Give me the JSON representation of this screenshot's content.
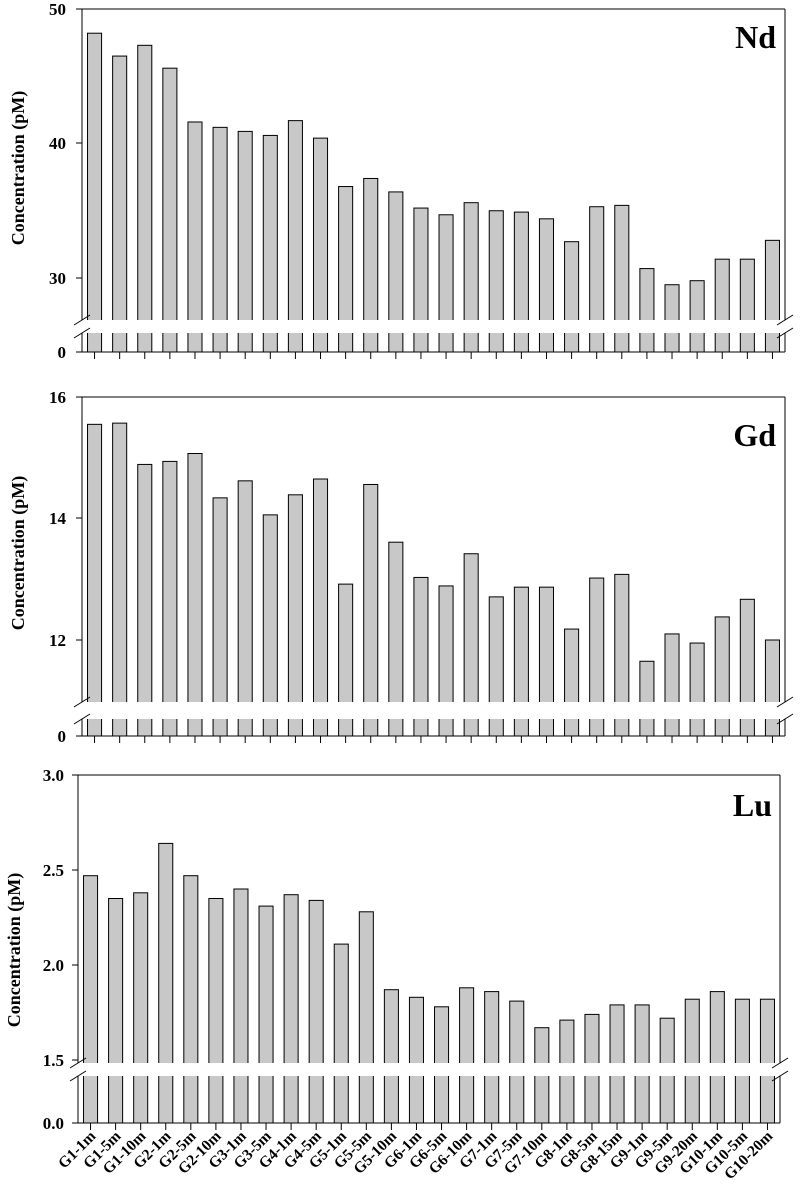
{
  "chart_data": [
    {
      "type": "bar",
      "title": "Nd",
      "ylabel": "Concentration (pM)",
      "xlabel": "",
      "axis_break": true,
      "ylim": [
        26.5,
        50
      ],
      "yticks": [
        30,
        40,
        50
      ],
      "break_tick": 0,
      "bar_color": "#c8c8c8",
      "categories": [
        "G1-1m",
        "G1-5m",
        "G1-10m",
        "G2-1m",
        "G2-5m",
        "G2-10m",
        "G3-1m",
        "G3-5m",
        "G4-1m",
        "G4-5m",
        "G5-1m",
        "G5-5m",
        "G5-10m",
        "G6-1m",
        "G6-5m",
        "G6-10m",
        "G7-1m",
        "G7-5m",
        "G7-10m",
        "G8-1m",
        "G8-5m",
        "G8-15m",
        "G9-1m",
        "G9-5m",
        "G9-20m",
        "G10-1m",
        "G10-5m",
        "G10-20m"
      ],
      "values": [
        48.2,
        46.5,
        47.3,
        45.6,
        41.6,
        41.2,
        40.9,
        40.6,
        41.7,
        40.4,
        36.8,
        37.4,
        36.4,
        35.2,
        34.7,
        35.6,
        35.0,
        34.9,
        34.4,
        32.7,
        35.3,
        35.4,
        30.7,
        29.5,
        29.8,
        31.4,
        31.4,
        32.8
      ]
    },
    {
      "type": "bar",
      "title": "Gd",
      "ylabel": "Concentration (pM)",
      "xlabel": "",
      "axis_break": true,
      "ylim": [
        11.0,
        16
      ],
      "yticks": [
        12,
        14,
        16
      ],
      "break_tick": 0,
      "bar_color": "#c8c8c8",
      "categories": [
        "G1-1m",
        "G1-5m",
        "G1-10m",
        "G2-1m",
        "G2-5m",
        "G2-10m",
        "G3-1m",
        "G3-5m",
        "G4-1m",
        "G4-5m",
        "G5-1m",
        "G5-5m",
        "G5-10m",
        "G6-1m",
        "G6-5m",
        "G6-10m",
        "G7-1m",
        "G7-5m",
        "G7-10m",
        "G8-1m",
        "G8-5m",
        "G8-15m",
        "G9-1m",
        "G9-5m",
        "G9-20m",
        "G10-1m",
        "G10-5m",
        "G10-20m"
      ],
      "values": [
        15.55,
        15.57,
        14.89,
        14.94,
        15.07,
        14.34,
        14.62,
        14.06,
        14.39,
        14.65,
        12.92,
        14.56,
        13.61,
        13.03,
        12.89,
        13.42,
        12.71,
        12.87,
        12.87,
        12.18,
        13.02,
        13.08,
        11.65,
        12.1,
        11.95,
        12.38,
        12.67,
        12.0
      ]
    },
    {
      "type": "bar",
      "title": "Lu",
      "ylabel": "Concentration (pM)",
      "xlabel": "",
      "axis_break": true,
      "ylim": [
        1.5,
        3.0
      ],
      "yticks": [
        1.5,
        2.0,
        2.5,
        3.0
      ],
      "break_tick": 0.0,
      "bar_color": "#c8c8c8",
      "categories": [
        "G1-1m",
        "G1-5m",
        "G1-10m",
        "G2-1m",
        "G2-5m",
        "G2-10m",
        "G3-1m",
        "G3-5m",
        "G4-1m",
        "G4-5m",
        "G5-1m",
        "G5-5m",
        "G5-10m",
        "G6-1m",
        "G6-5m",
        "G6-10m",
        "G7-1m",
        "G7-5m",
        "G7-10m",
        "G8-1m",
        "G8-5m",
        "G8-15m",
        "G9-1m",
        "G9-5m",
        "G9-20m",
        "G10-1m",
        "G10-5m",
        "G10-20m"
      ],
      "values": [
        2.47,
        2.35,
        2.38,
        2.64,
        2.47,
        2.35,
        2.4,
        2.31,
        2.37,
        2.34,
        2.11,
        2.28,
        1.87,
        1.83,
        1.78,
        1.88,
        1.86,
        1.81,
        1.67,
        1.71,
        1.74,
        1.79,
        1.79,
        1.72,
        1.82,
        1.86,
        1.82,
        1.82
      ]
    }
  ],
  "tick_labels": {
    "nd": [
      "50",
      "40",
      "30",
      "0"
    ],
    "gd": [
      "16",
      "14",
      "12",
      "0"
    ],
    "lu": [
      "3.0",
      "2.5",
      "2.0",
      "1.5",
      "0.0"
    ]
  }
}
